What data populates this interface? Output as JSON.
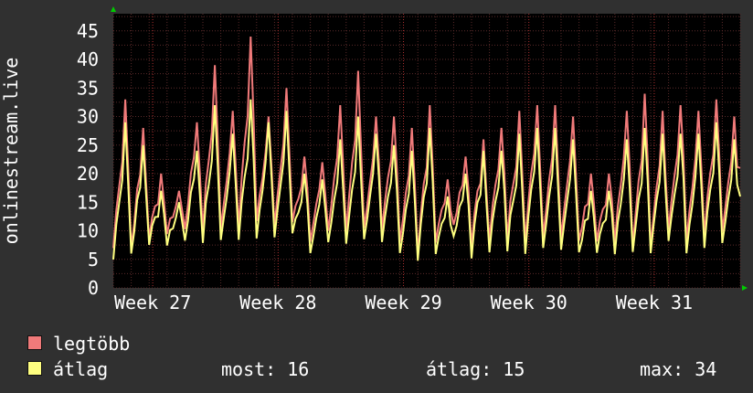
{
  "colors": {
    "background": "#303030",
    "plot_background": "#000000",
    "grid": "#5a2a2a",
    "max_series": "#f07a7a",
    "avg_series": "#ffff80",
    "axis_arrow": "#00cc00"
  },
  "legend": {
    "max_label": "legtöbb",
    "avg_label": "átlag",
    "now_text": "most: 16",
    "avg_text": "átlag: 15",
    "max_text": "max: 34"
  },
  "chart_data": {
    "type": "line",
    "ylabel": "onlinestream.live",
    "ylim": [
      0,
      48
    ],
    "yticks": [
      0,
      5,
      10,
      15,
      20,
      25,
      30,
      35,
      40,
      45
    ],
    "xlim": [
      0,
      35
    ],
    "xticks": [
      {
        "label": "Week 27",
        "day": 2.2
      },
      {
        "label": "Week 28",
        "day": 9.2
      },
      {
        "label": "Week 29",
        "day": 16.2
      },
      {
        "label": "Week 30",
        "day": 23.2
      },
      {
        "label": "Week 31",
        "day": 30.2
      }
    ],
    "grid": true,
    "series": [
      {
        "name": "legtöbb",
        "daily_peaks": [
          33,
          28,
          20,
          17,
          29,
          39,
          31,
          44,
          30,
          35,
          23,
          22,
          32,
          38,
          30,
          30,
          28,
          32,
          19,
          23,
          26,
          28,
          31,
          32,
          32,
          30,
          20,
          20,
          31,
          34,
          31,
          32,
          31,
          33,
          30
        ],
        "daily_lows": [
          7,
          7,
          9,
          10,
          11,
          10,
          10,
          11,
          12,
          10,
          11,
          9,
          9,
          9,
          10,
          9,
          8,
          6,
          9,
          10,
          8,
          9,
          9,
          9,
          9,
          9,
          9,
          9,
          8,
          7,
          8,
          10,
          8,
          9,
          9
        ],
        "end_value": 21
      },
      {
        "name": "átlag",
        "daily_peaks": [
          29,
          25,
          17,
          15,
          24,
          32,
          27,
          33,
          29,
          31,
          20,
          19,
          26,
          30,
          27,
          25,
          24,
          28,
          16,
          20,
          24,
          24,
          27,
          28,
          28,
          26,
          17,
          17,
          26,
          28,
          27,
          27,
          27,
          29,
          26
        ],
        "daily_lows": [
          5,
          6,
          8,
          8,
          9,
          8,
          8,
          9,
          9,
          8,
          9,
          7,
          7,
          7,
          8,
          7,
          6,
          5,
          7,
          8,
          6,
          7,
          7,
          7,
          7,
          7,
          7,
          7,
          6,
          6,
          7,
          8,
          6,
          7,
          7
        ],
        "end_value": 16
      }
    ]
  }
}
